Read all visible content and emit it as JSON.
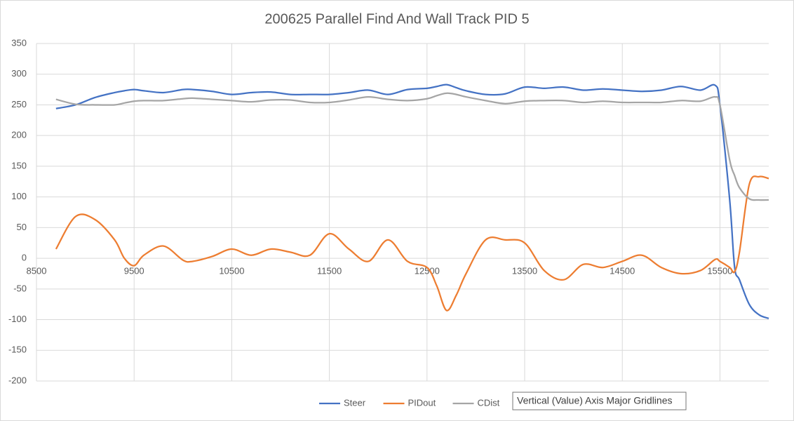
{
  "chart_data": {
    "type": "line",
    "title": "200625 Parallel Find And Wall Track PID 5",
    "x": [
      8700,
      8900,
      9100,
      9300,
      9400,
      9500,
      9600,
      9800,
      10000,
      10100,
      10300,
      10500,
      10700,
      10900,
      11100,
      11300,
      11500,
      11700,
      11900,
      12100,
      12300,
      12500,
      12600,
      12700,
      12800,
      12900,
      13100,
      13300,
      13500,
      13700,
      13900,
      14100,
      14300,
      14500,
      14700,
      14900,
      15100,
      15300,
      15450,
      15500,
      15600,
      15650,
      15700,
      15800,
      15900,
      16000
    ],
    "series": [
      {
        "name": "Steer",
        "color": "#4472c4",
        "values": [
          244,
          250,
          262,
          270,
          273,
          275,
          273,
          270,
          275,
          275,
          272,
          267,
          270,
          271,
          267,
          267,
          267,
          270,
          274,
          267,
          275,
          277,
          280,
          283,
          278,
          273,
          267,
          268,
          279,
          277,
          279,
          274,
          276,
          274,
          272,
          274,
          280,
          274,
          282,
          250,
          95,
          -14,
          -35,
          -75,
          -92,
          -98
        ]
      },
      {
        "name": "PIDout",
        "color": "#ed7d31",
        "values": [
          15,
          68,
          63,
          30,
          0,
          -12,
          5,
          20,
          -3,
          -5,
          3,
          15,
          5,
          15,
          10,
          5,
          40,
          15,
          -5,
          30,
          -5,
          -15,
          -45,
          -85,
          -60,
          -25,
          30,
          30,
          25,
          -20,
          -35,
          -10,
          -15,
          -5,
          5,
          -15,
          -25,
          -20,
          -2,
          -5,
          -15,
          -22,
          10,
          120,
          133,
          130
        ]
      },
      {
        "name": "CDist",
        "color": "#a5a5a5",
        "values": [
          259,
          251,
          250,
          250,
          253,
          256,
          257,
          257,
          260,
          261,
          259,
          257,
          255,
          258,
          258,
          254,
          254,
          258,
          263,
          259,
          257,
          260,
          265,
          269,
          267,
          263,
          257,
          252,
          256,
          257,
          257,
          254,
          256,
          254,
          254,
          254,
          257,
          256,
          263,
          250,
          160,
          135,
          115,
          97,
          95,
          95
        ]
      }
    ],
    "xlim": [
      8500,
      16000
    ],
    "xticks": [
      8500,
      9500,
      10500,
      11500,
      12500,
      13500,
      14500,
      15500
    ],
    "ylim": [
      -200,
      350
    ],
    "yticks": [
      -200,
      -150,
      -100,
      -50,
      0,
      50,
      100,
      150,
      200,
      250,
      300,
      350
    ],
    "grid": true,
    "legend": "bottom",
    "tooltip": "Vertical (Value) Axis Major Gridlines"
  }
}
